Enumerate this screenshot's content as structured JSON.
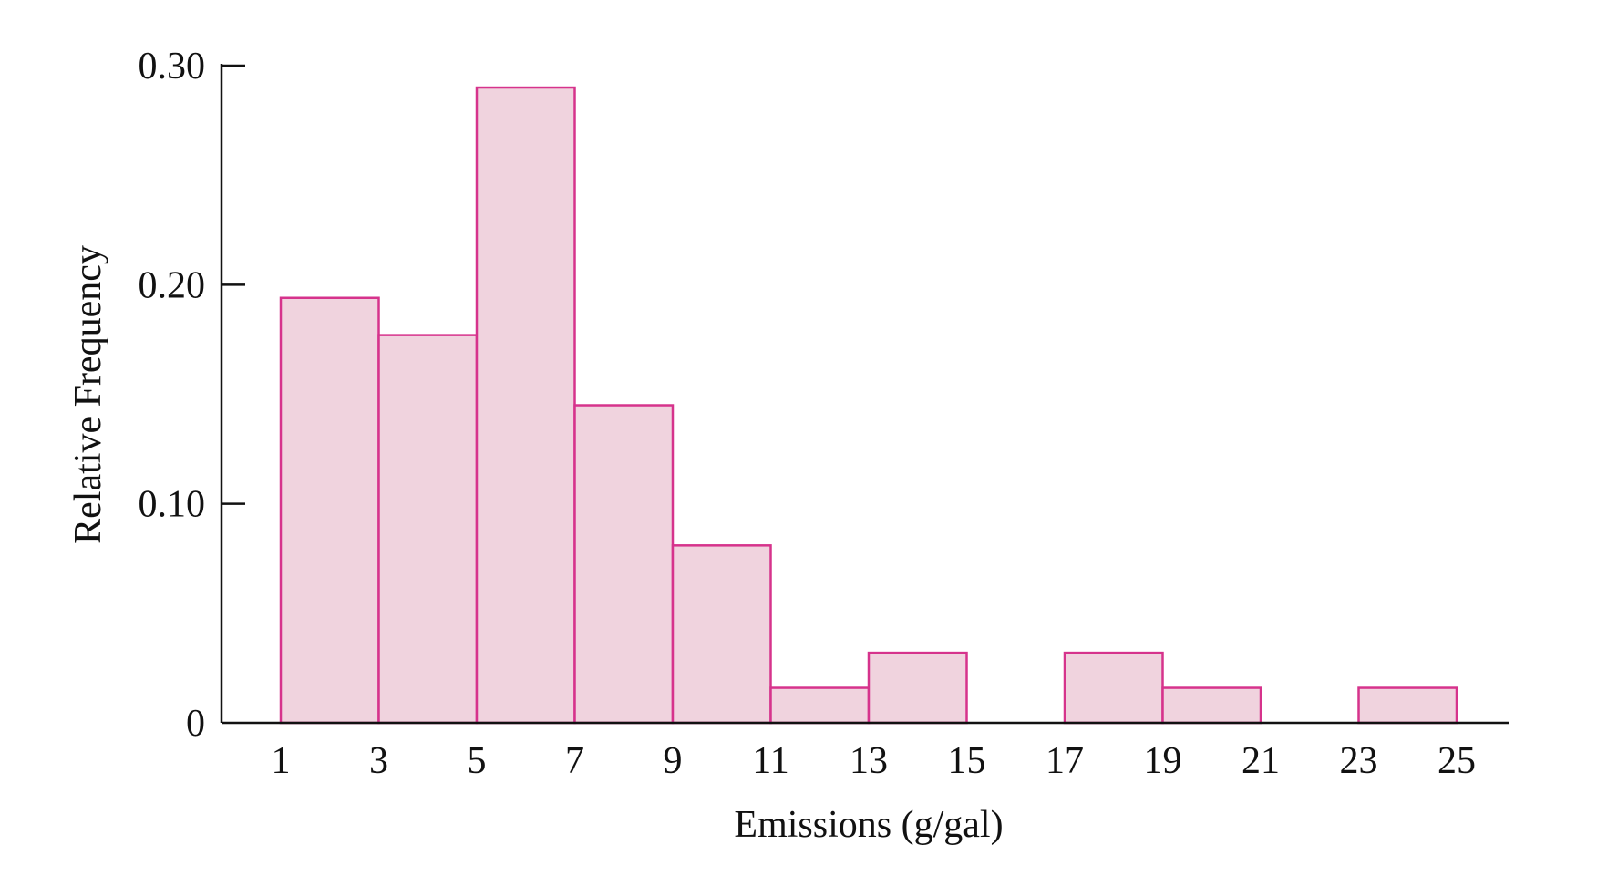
{
  "chart_data": {
    "type": "bar",
    "subtype": "histogram",
    "title": "",
    "xlabel": "Emissions (g/gal)",
    "ylabel": "Relative Frequency",
    "bin_edges": [
      1,
      3,
      5,
      7,
      9,
      11,
      13,
      15,
      17,
      19,
      21,
      23,
      25
    ],
    "x_tick_labels": [
      "1",
      "3",
      "5",
      "7",
      "9",
      "11",
      "13",
      "15",
      "17",
      "19",
      "21",
      "23",
      "25"
    ],
    "values": [
      0.194,
      0.177,
      0.29,
      0.145,
      0.081,
      0.016,
      0.032,
      0.0,
      0.032,
      0.016,
      0.0,
      0.016
    ],
    "y_ticks": [
      0,
      0.1,
      0.2,
      0.3
    ],
    "y_tick_labels": [
      "0",
      "0.10",
      "0.20",
      "0.30"
    ],
    "xlim": [
      1,
      25
    ],
    "ylim": [
      0,
      0.3
    ],
    "grid": false,
    "legend": "none",
    "colors": {
      "bar_fill": "#f0d3de",
      "bar_stroke": "#d6338c",
      "axis": "#111111"
    }
  }
}
